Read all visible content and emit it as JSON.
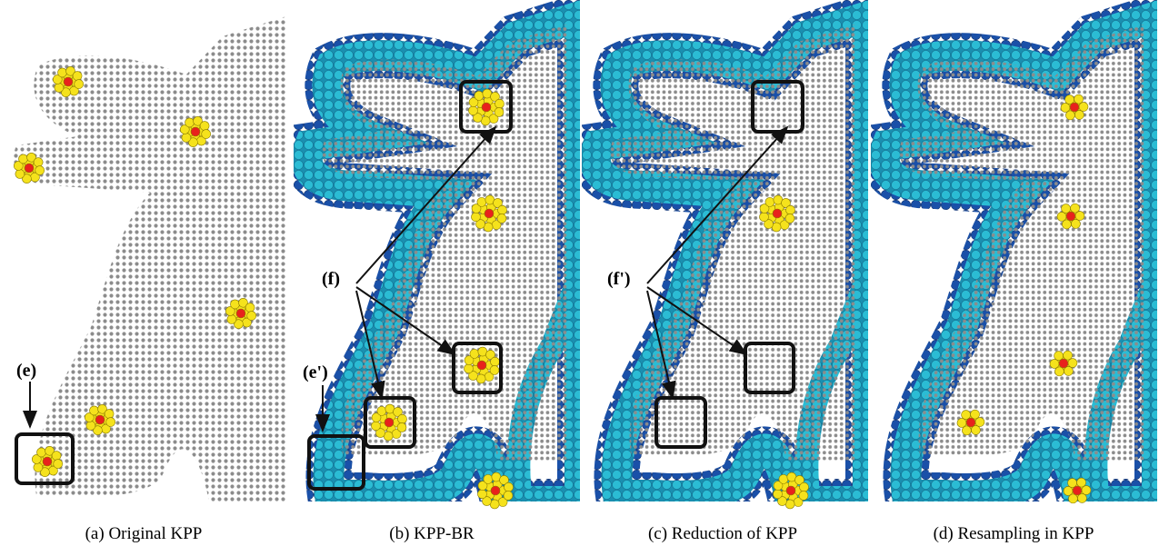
{
  "panels": [
    {
      "caption": "(a) Original KPP",
      "labels": [
        "(e)"
      ]
    },
    {
      "caption": "(b) KPP-BR",
      "labels": [
        "(e')",
        "(f)"
      ]
    },
    {
      "caption": "(c) Reduction of KPP",
      "labels": [
        "(f')"
      ]
    },
    {
      "caption": "(d) Resampling in KPP",
      "labels": []
    }
  ]
}
